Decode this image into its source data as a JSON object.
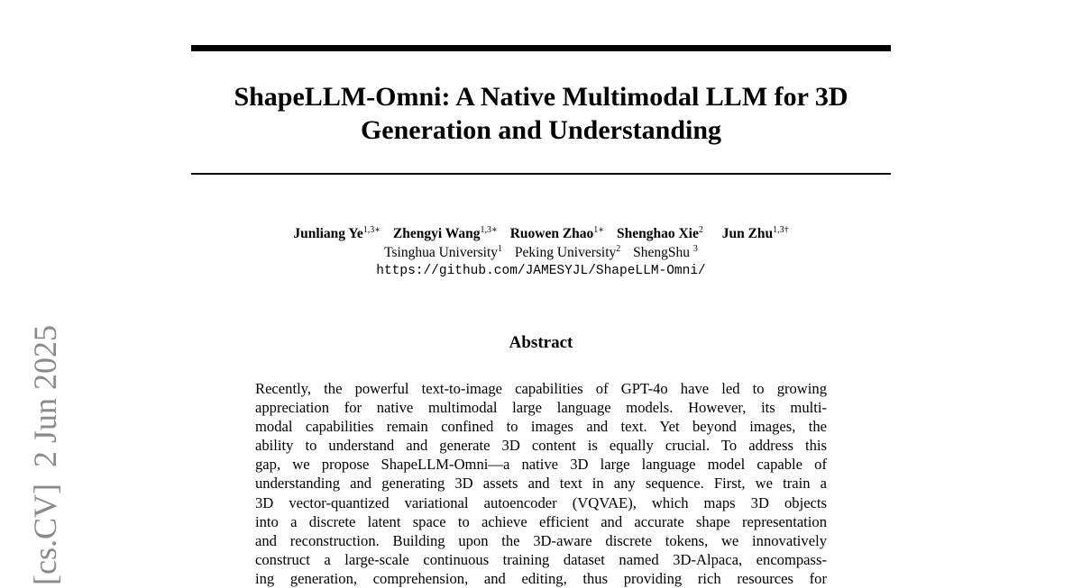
{
  "arxiv_stamp": "[cs.CV]  2 Jun 2025",
  "title": {
    "line1": "ShapeLLM-Omni: A Native Multimodal LLM for 3D",
    "line2": "Generation and Understanding"
  },
  "authors": [
    {
      "name": "Junliang Ye",
      "sup": "1,3∗"
    },
    {
      "name": "Zhengyi Wang",
      "sup": "1,3∗"
    },
    {
      "name": "Ruowen Zhao",
      "sup": "1∗"
    },
    {
      "name": "Shenghao Xie",
      "sup": "2"
    },
    {
      "name": "Jun Zhu",
      "sup": "1,3†"
    }
  ],
  "affiliations": [
    {
      "name": "Tsinghua University",
      "sup": "1"
    },
    {
      "name": "Peking University",
      "sup": "2"
    },
    {
      "name": "ShengShu ",
      "sup": "3"
    }
  ],
  "url": "https://github.com/JAMESYJL/ShapeLLM-Omni/",
  "abstract": {
    "heading": "Abstract",
    "lines": [
      "Recently, the powerful text-to-image capabilities of GPT-4o have led to growing",
      "appreciation for native multimodal large language models. However, its multi-",
      "modal capabilities remain confined to images and text. Yet beyond images, the",
      "ability to understand and generate 3D content is equally crucial. To address this",
      "gap, we propose ShapeLLM-Omni—a native 3D large language model capable of",
      "understanding and generating 3D assets and text in any sequence. First, we train a",
      "3D vector-quantized variational autoencoder (VQVAE), which maps 3D objects",
      "into a discrete latent space to achieve efficient and accurate shape representation",
      "and reconstruction. Building upon the 3D-aware discrete tokens, we innovatively",
      "construct a large-scale continuous training dataset named 3D-Alpaca, encompass-",
      "ing generation, comprehension, and editing, thus providing rich resources for"
    ]
  }
}
